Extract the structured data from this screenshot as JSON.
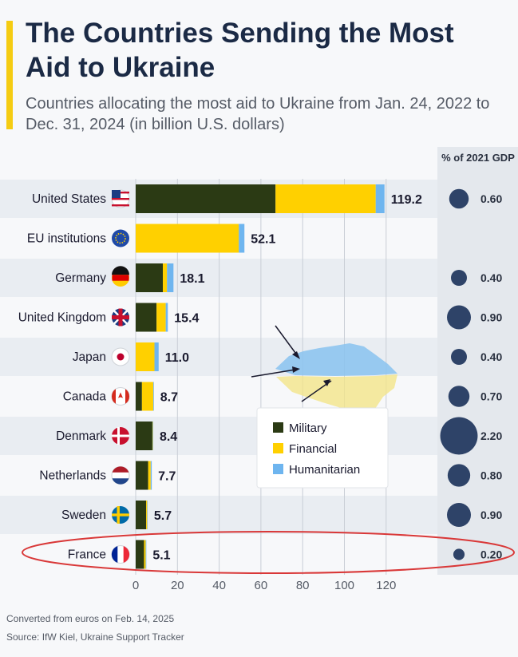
{
  "header": {
    "title": "The Countries Sending the Most Aid to Ukraine",
    "subtitle": "Countries allocating the most aid to Ukraine from Jan. 24, 2022 to Dec. 31, 2024 (in billion U.S. dollars)"
  },
  "gdp_header": "% of 2021 GDP",
  "footnote": "Converted from euros on Feb. 14, 2025",
  "source": "Source: IfW Kiel, Ukraine Support Tracker",
  "colors": {
    "military": "#2b3a14",
    "financial": "#ffd000",
    "humanitarian": "#6eb5ef",
    "gdp_circle": "#2e4368",
    "highlight": "#d93838",
    "row_band": "#e9edf2"
  },
  "chart_data": {
    "type": "bar",
    "orientation": "horizontal",
    "stacked": true,
    "categories": [
      "United States",
      "EU institutions",
      "Germany",
      "United Kingdom",
      "Japan",
      "Canada",
      "Denmark",
      "Netherlands",
      "Sweden",
      "France"
    ],
    "series": [
      {
        "name": "Military",
        "values": [
          67.0,
          0,
          13.0,
          10.0,
          0,
          3.0,
          8.0,
          6.0,
          5.0,
          4.0
        ]
      },
      {
        "name": "Financial",
        "values": [
          48.0,
          49.4,
          2.0,
          4.4,
          9.0,
          5.4,
          0.2,
          1.2,
          0.5,
          0.8
        ]
      },
      {
        "name": "Humanitarian",
        "values": [
          4.2,
          2.7,
          3.1,
          1.0,
          2.0,
          0.3,
          0.2,
          0.5,
          0.2,
          0.3
        ]
      }
    ],
    "totals": [
      "119.2",
      "52.1",
      "18.1",
      "15.4",
      "11.0",
      "8.7",
      "8.4",
      "7.7",
      "5.7",
      "5.1"
    ],
    "gdp_share": [
      "0.60",
      null,
      "0.40",
      "0.90",
      "0.40",
      "0.70",
      "2.20",
      "0.80",
      "0.90",
      "0.20"
    ],
    "gdp_values": [
      0.6,
      null,
      0.4,
      0.9,
      0.4,
      0.7,
      2.2,
      0.8,
      0.9,
      0.2
    ],
    "xlim": [
      0,
      120
    ],
    "xticks": [
      0,
      20,
      40,
      60,
      80,
      100,
      120
    ],
    "xtick_labels": [
      "0",
      "20",
      "40",
      "60",
      "80",
      "100",
      "120"
    ],
    "grid": true,
    "legend": {
      "position": "middle-right",
      "entries": [
        "Military",
        "Financial",
        "Humanitarian"
      ]
    },
    "flags": [
      "us-flag-icon",
      "eu-flag-icon",
      "germany-flag-icon",
      "uk-flag-icon",
      "japan-flag-icon",
      "canada-flag-icon",
      "denmark-flag-icon",
      "netherlands-flag-icon",
      "sweden-flag-icon",
      "france-flag-icon"
    ],
    "highlighted_category": "France"
  }
}
